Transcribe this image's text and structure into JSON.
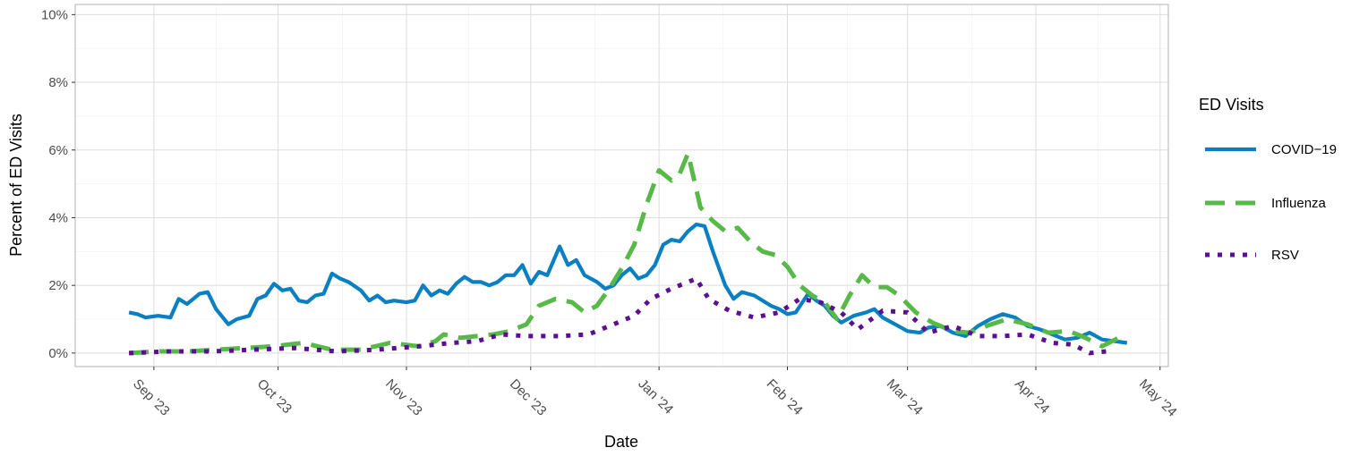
{
  "chart_data": {
    "type": "line",
    "xlabel": "Date",
    "ylabel": "Percent of ED Visits",
    "x_range": [
      "2023-08-13",
      "2024-05-03"
    ],
    "ylim": [
      -0.4,
      10.3
    ],
    "y_ticks": [
      0,
      2,
      4,
      6,
      8,
      10
    ],
    "y_tick_labels": [
      "0%",
      "2%",
      "4%",
      "6%",
      "8%",
      "10%"
    ],
    "x_ticks": [
      "2023-09-01",
      "2023-10-01",
      "2023-11-01",
      "2023-12-01",
      "2024-01-01",
      "2024-02-01",
      "2024-03-01",
      "2024-04-01",
      "2024-05-01"
    ],
    "x_tick_labels": [
      "Sep '23",
      "Oct '23",
      "Nov '23",
      "Dec '23",
      "Jan '24",
      "Feb '24",
      "Mar '24",
      "Apr '24",
      "May '24"
    ],
    "grid": true,
    "legend": {
      "title": "ED Visits",
      "position": "right"
    },
    "series": [
      {
        "name": "COVID−19",
        "color": "#0a7fc1",
        "dash": "solid",
        "points": [
          [
            "2023-08-26",
            1.2
          ],
          [
            "2023-08-28",
            1.15
          ],
          [
            "2023-08-30",
            1.05
          ],
          [
            "2023-09-02",
            1.1
          ],
          [
            "2023-09-05",
            1.05
          ],
          [
            "2023-09-07",
            1.6
          ],
          [
            "2023-09-09",
            1.45
          ],
          [
            "2023-09-12",
            1.75
          ],
          [
            "2023-09-14",
            1.8
          ],
          [
            "2023-09-16",
            1.3
          ],
          [
            "2023-09-19",
            0.85
          ],
          [
            "2023-09-21",
            1.0
          ],
          [
            "2023-09-24",
            1.1
          ],
          [
            "2023-09-26",
            1.6
          ],
          [
            "2023-09-28",
            1.7
          ],
          [
            "2023-09-30",
            2.05
          ],
          [
            "2023-10-02",
            1.85
          ],
          [
            "2023-10-04",
            1.9
          ],
          [
            "2023-10-06",
            1.55
          ],
          [
            "2023-10-08",
            1.5
          ],
          [
            "2023-10-10",
            1.7
          ],
          [
            "2023-10-12",
            1.75
          ],
          [
            "2023-10-14",
            2.35
          ],
          [
            "2023-10-16",
            2.2
          ],
          [
            "2023-10-18",
            2.1
          ],
          [
            "2023-10-21",
            1.85
          ],
          [
            "2023-10-23",
            1.55
          ],
          [
            "2023-10-25",
            1.7
          ],
          [
            "2023-10-27",
            1.5
          ],
          [
            "2023-10-29",
            1.55
          ],
          [
            "2023-11-01",
            1.5
          ],
          [
            "2023-11-03",
            1.55
          ],
          [
            "2023-11-05",
            2.0
          ],
          [
            "2023-11-07",
            1.7
          ],
          [
            "2023-11-09",
            1.85
          ],
          [
            "2023-11-11",
            1.75
          ],
          [
            "2023-11-13",
            2.05
          ],
          [
            "2023-11-15",
            2.25
          ],
          [
            "2023-11-17",
            2.1
          ],
          [
            "2023-11-19",
            2.1
          ],
          [
            "2023-11-21",
            2.0
          ],
          [
            "2023-11-23",
            2.1
          ],
          [
            "2023-11-25",
            2.3
          ],
          [
            "2023-11-27",
            2.3
          ],
          [
            "2023-11-29",
            2.6
          ],
          [
            "2023-12-01",
            2.05
          ],
          [
            "2023-12-03",
            2.4
          ],
          [
            "2023-12-05",
            2.3
          ],
          [
            "2023-12-08",
            3.15
          ],
          [
            "2023-12-10",
            2.6
          ],
          [
            "2023-12-12",
            2.75
          ],
          [
            "2023-12-14",
            2.3
          ],
          [
            "2023-12-17",
            2.1
          ],
          [
            "2023-12-19",
            1.9
          ],
          [
            "2023-12-21",
            2.0
          ],
          [
            "2023-12-23",
            2.3
          ],
          [
            "2023-12-25",
            2.5
          ],
          [
            "2023-12-27",
            2.2
          ],
          [
            "2023-12-29",
            2.3
          ],
          [
            "2023-12-31",
            2.6
          ],
          [
            "2024-01-02",
            3.2
          ],
          [
            "2024-01-04",
            3.35
          ],
          [
            "2024-01-06",
            3.3
          ],
          [
            "2024-01-08",
            3.6
          ],
          [
            "2024-01-10",
            3.8
          ],
          [
            "2024-01-12",
            3.75
          ],
          [
            "2024-01-14",
            3.0
          ],
          [
            "2024-01-17",
            2.0
          ],
          [
            "2024-01-19",
            1.6
          ],
          [
            "2024-01-21",
            1.8
          ],
          [
            "2024-01-24",
            1.7
          ],
          [
            "2024-01-26",
            1.55
          ],
          [
            "2024-01-28",
            1.4
          ],
          [
            "2024-01-30",
            1.3
          ],
          [
            "2024-02-01",
            1.15
          ],
          [
            "2024-02-03",
            1.2
          ],
          [
            "2024-02-06",
            1.75
          ],
          [
            "2024-02-08",
            1.55
          ],
          [
            "2024-02-10",
            1.4
          ],
          [
            "2024-02-12",
            1.1
          ],
          [
            "2024-02-14",
            0.9
          ],
          [
            "2024-02-17",
            1.1
          ],
          [
            "2024-02-20",
            1.2
          ],
          [
            "2024-02-22",
            1.3
          ],
          [
            "2024-02-24",
            1.05
          ],
          [
            "2024-02-27",
            0.85
          ],
          [
            "2024-03-01",
            0.65
          ],
          [
            "2024-03-04",
            0.6
          ],
          [
            "2024-03-06",
            0.75
          ],
          [
            "2024-03-09",
            0.8
          ],
          [
            "2024-03-12",
            0.6
          ],
          [
            "2024-03-15",
            0.5
          ],
          [
            "2024-03-18",
            0.8
          ],
          [
            "2024-03-21",
            1.0
          ],
          [
            "2024-03-24",
            1.15
          ],
          [
            "2024-03-27",
            1.05
          ],
          [
            "2024-03-30",
            0.8
          ],
          [
            "2024-04-02",
            0.7
          ],
          [
            "2024-04-05",
            0.55
          ],
          [
            "2024-04-08",
            0.4
          ],
          [
            "2024-04-11",
            0.45
          ],
          [
            "2024-04-14",
            0.6
          ],
          [
            "2024-04-17",
            0.4
          ],
          [
            "2024-04-20",
            0.35
          ],
          [
            "2024-04-23",
            0.3
          ]
        ]
      },
      {
        "name": "Influenza",
        "color": "#57b947",
        "dash": "dashed",
        "points": [
          [
            "2023-08-26",
            0.0
          ],
          [
            "2023-09-02",
            0.05
          ],
          [
            "2023-09-09",
            0.05
          ],
          [
            "2023-09-16",
            0.1
          ],
          [
            "2023-09-23",
            0.15
          ],
          [
            "2023-09-30",
            0.2
          ],
          [
            "2023-10-07",
            0.3
          ],
          [
            "2023-10-14",
            0.1
          ],
          [
            "2023-10-21",
            0.1
          ],
          [
            "2023-10-28",
            0.3
          ],
          [
            "2023-11-04",
            0.2
          ],
          [
            "2023-11-08",
            0.35
          ],
          [
            "2023-11-10",
            0.55
          ],
          [
            "2023-11-14",
            0.45
          ],
          [
            "2023-11-18",
            0.5
          ],
          [
            "2023-11-22",
            0.55
          ],
          [
            "2023-11-26",
            0.65
          ],
          [
            "2023-11-30",
            0.85
          ],
          [
            "2023-12-03",
            1.4
          ],
          [
            "2023-12-07",
            1.6
          ],
          [
            "2023-12-11",
            1.5
          ],
          [
            "2023-12-14",
            1.2
          ],
          [
            "2023-12-17",
            1.4
          ],
          [
            "2023-12-20",
            1.9
          ],
          [
            "2023-12-23",
            2.5
          ],
          [
            "2023-12-26",
            3.2
          ],
          [
            "2023-12-29",
            4.4
          ],
          [
            "2024-01-01",
            5.4
          ],
          [
            "2024-01-04",
            5.1
          ],
          [
            "2024-01-06",
            5.3
          ],
          [
            "2024-01-08",
            5.9
          ],
          [
            "2024-01-11",
            4.3
          ],
          [
            "2024-01-14",
            3.9
          ],
          [
            "2024-01-17",
            3.6
          ],
          [
            "2024-01-20",
            3.7
          ],
          [
            "2024-01-23",
            3.3
          ],
          [
            "2024-01-26",
            3.0
          ],
          [
            "2024-01-29",
            2.9
          ],
          [
            "2024-02-01",
            2.55
          ],
          [
            "2024-02-04",
            2.0
          ],
          [
            "2024-02-07",
            1.7
          ],
          [
            "2024-02-10",
            1.5
          ],
          [
            "2024-02-13",
            1.0
          ],
          [
            "2024-02-16",
            1.7
          ],
          [
            "2024-02-19",
            2.3
          ],
          [
            "2024-02-22",
            1.95
          ],
          [
            "2024-02-25",
            1.95
          ],
          [
            "2024-02-28",
            1.7
          ],
          [
            "2024-03-03",
            1.2
          ],
          [
            "2024-03-07",
            0.9
          ],
          [
            "2024-03-12",
            0.65
          ],
          [
            "2024-03-16",
            0.6
          ],
          [
            "2024-03-20",
            0.8
          ],
          [
            "2024-03-25",
            1.0
          ],
          [
            "2024-03-30",
            0.85
          ],
          [
            "2024-04-04",
            0.6
          ],
          [
            "2024-04-09",
            0.65
          ],
          [
            "2024-04-13",
            0.45
          ],
          [
            "2024-04-17",
            0.2
          ],
          [
            "2024-04-21",
            0.45
          ]
        ]
      },
      {
        "name": "RSV",
        "color": "#5b0f91",
        "dash": "dotted",
        "points": [
          [
            "2023-08-26",
            0.0
          ],
          [
            "2023-09-05",
            0.05
          ],
          [
            "2023-09-15",
            0.05
          ],
          [
            "2023-09-25",
            0.1
          ],
          [
            "2023-10-05",
            0.15
          ],
          [
            "2023-10-15",
            0.05
          ],
          [
            "2023-10-25",
            0.1
          ],
          [
            "2023-11-04",
            0.2
          ],
          [
            "2023-11-12",
            0.3
          ],
          [
            "2023-11-18",
            0.35
          ],
          [
            "2023-11-24",
            0.55
          ],
          [
            "2023-11-30",
            0.5
          ],
          [
            "2023-12-08",
            0.5
          ],
          [
            "2023-12-15",
            0.55
          ],
          [
            "2023-12-21",
            0.85
          ],
          [
            "2023-12-26",
            1.1
          ],
          [
            "2023-12-30",
            1.6
          ],
          [
            "2024-01-04",
            1.9
          ],
          [
            "2024-01-07",
            2.05
          ],
          [
            "2024-01-10",
            2.2
          ],
          [
            "2024-01-13",
            1.6
          ],
          [
            "2024-01-18",
            1.25
          ],
          [
            "2024-01-24",
            1.05
          ],
          [
            "2024-01-30",
            1.2
          ],
          [
            "2024-02-04",
            1.6
          ],
          [
            "2024-02-09",
            1.5
          ],
          [
            "2024-02-14",
            1.2
          ],
          [
            "2024-02-18",
            0.7
          ],
          [
            "2024-02-24",
            1.25
          ],
          [
            "2024-03-01",
            1.2
          ],
          [
            "2024-03-06",
            0.6
          ],
          [
            "2024-03-12",
            0.8
          ],
          [
            "2024-03-18",
            0.5
          ],
          [
            "2024-03-24",
            0.5
          ],
          [
            "2024-03-30",
            0.55
          ],
          [
            "2024-04-05",
            0.3
          ],
          [
            "2024-04-10",
            0.25
          ],
          [
            "2024-04-14",
            0.0
          ],
          [
            "2024-04-18",
            0.05
          ]
        ]
      }
    ]
  }
}
